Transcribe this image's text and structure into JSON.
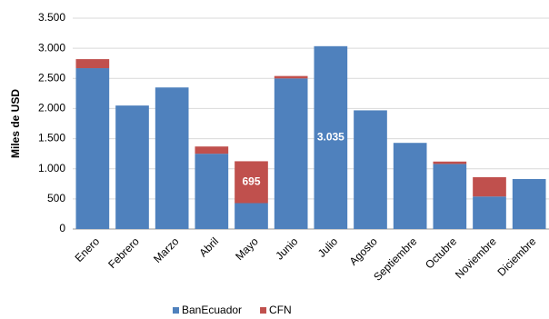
{
  "chart_data": {
    "type": "stacked_bar",
    "y_label": "Miles de USD",
    "categories": [
      "Enero",
      "Febrero",
      "Marzo",
      "Abril",
      "Mayo",
      "Junio",
      "Julio",
      "Agosto",
      "Septiembre",
      "Octubre",
      "Noviembre",
      "Diciembre"
    ],
    "series": [
      {
        "name": "BanEcuador",
        "color": "#4f81bd",
        "values": [
          2670,
          2050,
          2350,
          1250,
          430,
          2500,
          3035,
          1970,
          1430,
          1080,
          540,
          830
        ],
        "value_labels": [
          null,
          null,
          null,
          null,
          null,
          null,
          "3.035",
          null,
          null,
          null,
          null,
          null
        ]
      },
      {
        "name": "CFN",
        "color": "#c0504d",
        "values": [
          150,
          0,
          0,
          120,
          695,
          40,
          0,
          0,
          0,
          40,
          320,
          0
        ],
        "value_labels": [
          null,
          null,
          null,
          null,
          "695",
          null,
          null,
          null,
          null,
          null,
          null,
          null
        ]
      }
    ],
    "ylim": [
      0,
      3500
    ],
    "yticks": [
      0,
      500,
      {
        "value": 1000,
        "label": "1.000"
      },
      {
        "value": 1500,
        "label": "1.500"
      },
      {
        "value": 2000,
        "label": "2.000"
      },
      {
        "value": 2500,
        "label": "2.500"
      },
      {
        "value": 3000,
        "label": "3.000"
      },
      {
        "value": 3500,
        "label": "3.500"
      }
    ],
    "grid": true,
    "legend": "bottom"
  }
}
